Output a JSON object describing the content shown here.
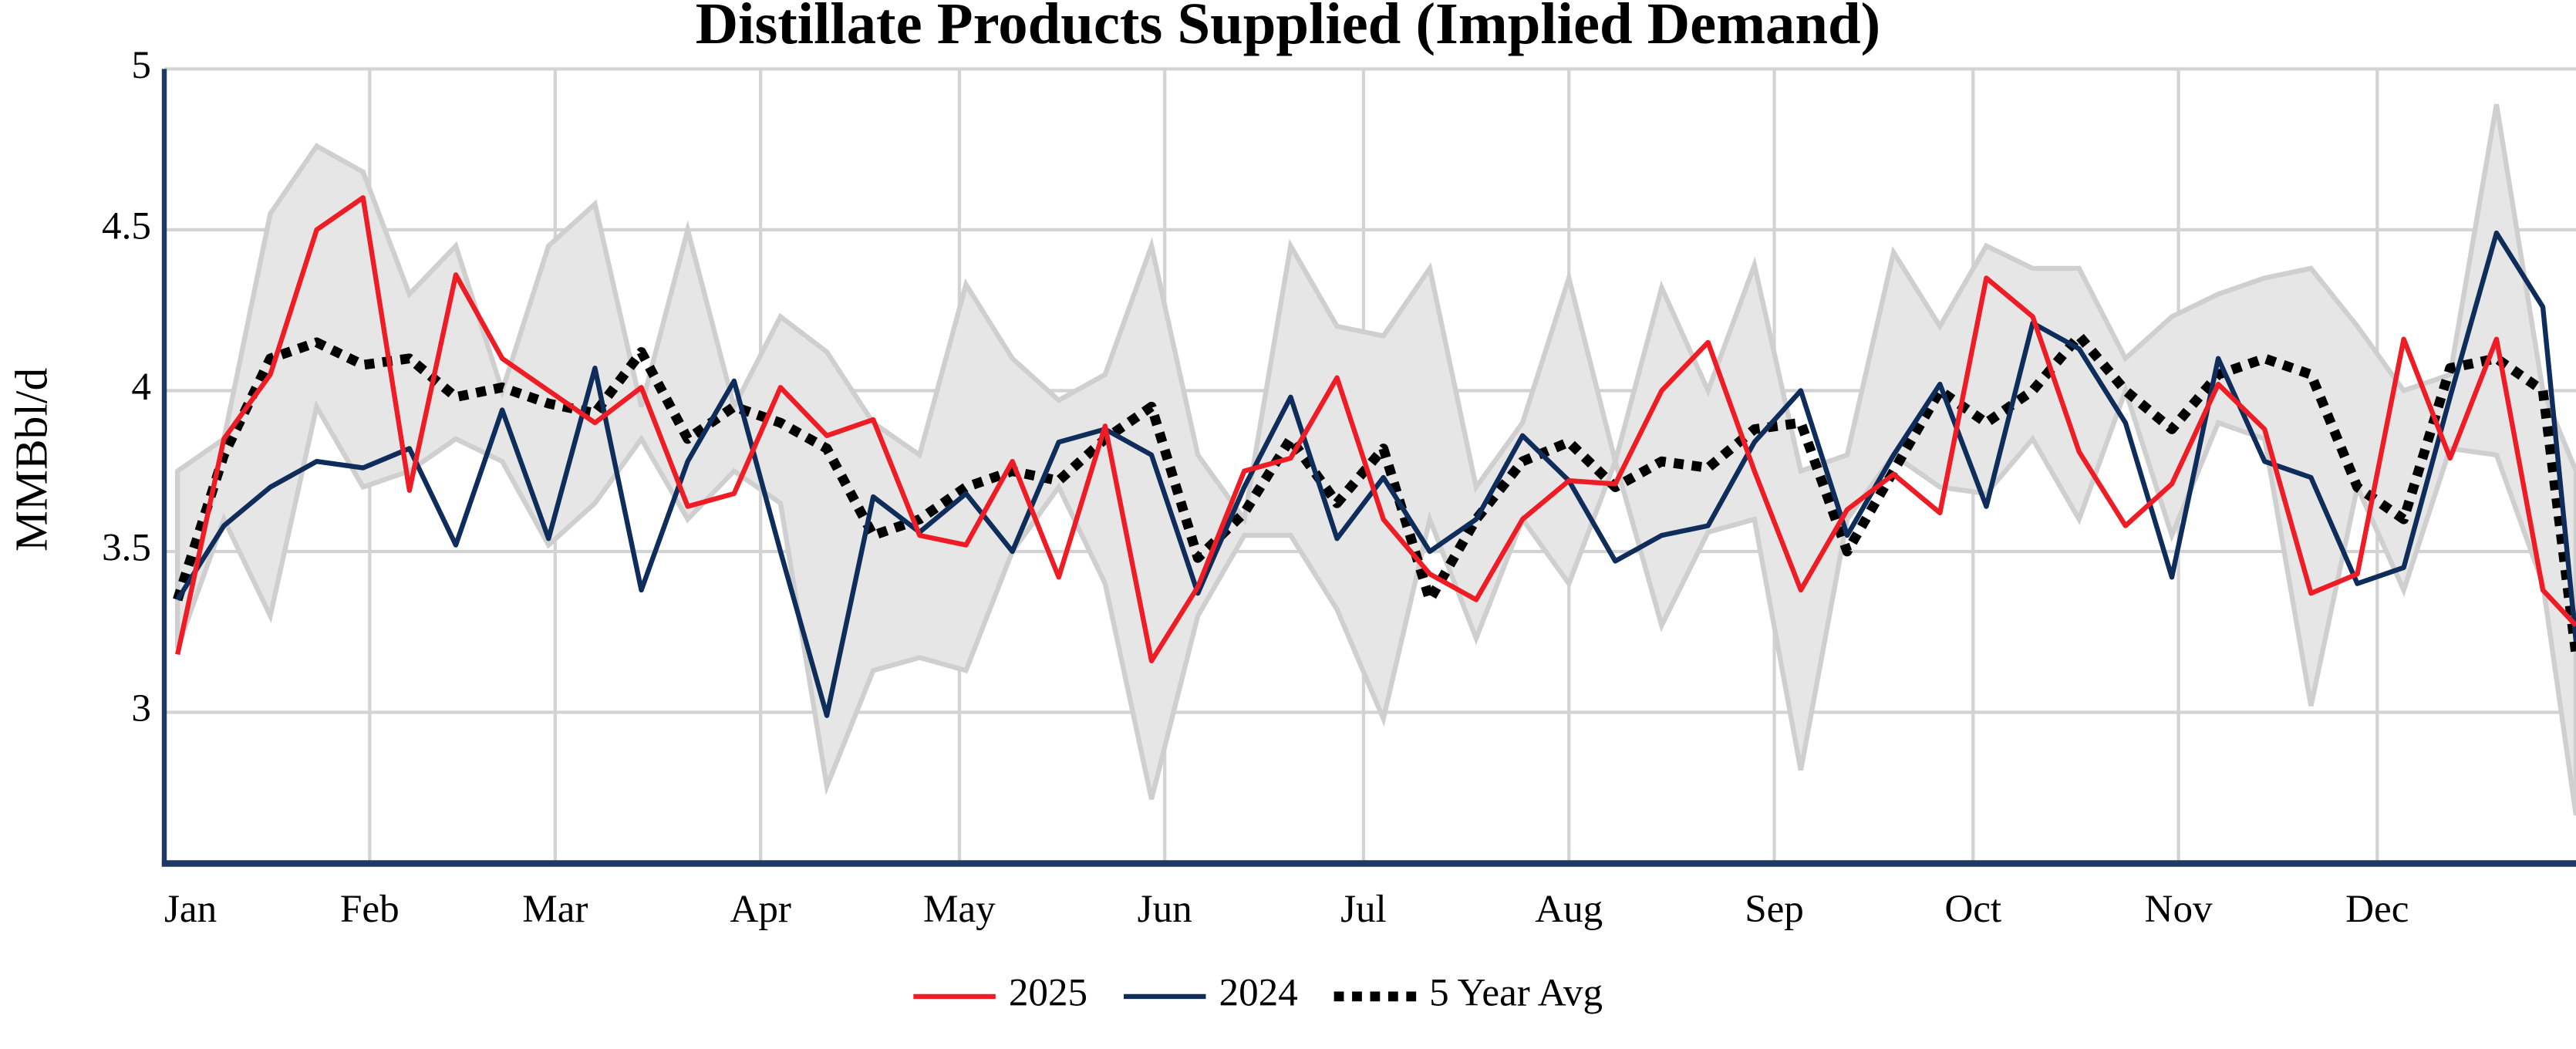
{
  "chart_data": {
    "type": "line",
    "title": "Distillate Products Supplied (Implied Demand)",
    "y_label": "MMBbl/d",
    "x": [
      2,
      9,
      16,
      23,
      30,
      37,
      44,
      51,
      58,
      65,
      72,
      79,
      86,
      93,
      100,
      107,
      114,
      121,
      128,
      135,
      142,
      149,
      156,
      163,
      170,
      177,
      184,
      191,
      198,
      205,
      212,
      219,
      226,
      233,
      240,
      247,
      254,
      261,
      268,
      275,
      282,
      289,
      296,
      303,
      310,
      317,
      324,
      331,
      338,
      345,
      352,
      359,
      364
    ],
    "xlim": [
      0,
      364
    ],
    "xticks": [
      {
        "value": 0,
        "label": "Jan"
      },
      {
        "value": 31,
        "label": "Feb"
      },
      {
        "value": 59,
        "label": "Mar"
      },
      {
        "value": 90,
        "label": "Apr"
      },
      {
        "value": 120,
        "label": "May"
      },
      {
        "value": 151,
        "label": "Jun"
      },
      {
        "value": 181,
        "label": "Jul"
      },
      {
        "value": 212,
        "label": "Aug"
      },
      {
        "value": 243,
        "label": "Sep"
      },
      {
        "value": 273,
        "label": "Oct"
      },
      {
        "value": 304,
        "label": "Nov"
      },
      {
        "value": 334,
        "label": "Dec"
      }
    ],
    "ylim": [
      2.53,
      5
    ],
    "yticks": [
      3,
      3.5,
      4,
      4.5,
      5
    ],
    "grid": true,
    "band": {
      "color": "#e6e6e6",
      "edge_color": "#cfcfcf",
      "upper": [
        3.75,
        3.85,
        4.55,
        4.76,
        4.68,
        4.3,
        4.45,
        4.0,
        4.45,
        4.58,
        3.95,
        4.5,
        3.95,
        4.23,
        4.12,
        3.9,
        3.8,
        4.33,
        4.1,
        3.97,
        4.05,
        4.45,
        3.8,
        3.6,
        4.45,
        4.2,
        4.17,
        4.38,
        3.7,
        3.9,
        4.35,
        3.78,
        4.32,
        4.0,
        4.39,
        3.75,
        3.8,
        4.43,
        4.2,
        4.45,
        4.38,
        4.38,
        4.1,
        4.23,
        4.3,
        4.35,
        4.38,
        4.2,
        4.0,
        4.05,
        4.89,
        4.0,
        3.75
      ],
      "lower": [
        3.2,
        3.6,
        3.3,
        3.95,
        3.7,
        3.75,
        3.85,
        3.78,
        3.52,
        3.65,
        3.85,
        3.6,
        3.75,
        3.65,
        2.77,
        3.13,
        3.17,
        3.13,
        3.5,
        3.7,
        3.4,
        2.73,
        3.3,
        3.55,
        3.55,
        3.32,
        2.98,
        3.6,
        3.23,
        3.6,
        3.4,
        3.78,
        3.27,
        3.56,
        3.6,
        2.82,
        3.6,
        3.8,
        3.7,
        3.68,
        3.85,
        3.6,
        4.0,
        3.55,
        3.9,
        3.85,
        3.02,
        3.7,
        3.38,
        3.82,
        3.8,
        3.4,
        2.68
      ]
    },
    "series": [
      {
        "name": "2025",
        "color": "#ee1c25",
        "style": "solid",
        "values": [
          3.18,
          3.85,
          4.05,
          4.5,
          4.6,
          3.69,
          4.36,
          4.1,
          4.0,
          3.9,
          4.01,
          3.64,
          3.68,
          4.01,
          3.86,
          3.91,
          3.55,
          3.52,
          3.78,
          3.42,
          3.89,
          3.16,
          3.39,
          3.75,
          3.79,
          4.04,
          3.6,
          3.43,
          3.35,
          3.6,
          3.72,
          3.71,
          4.0,
          4.15,
          3.75,
          3.38,
          3.63,
          3.74,
          3.62,
          4.35,
          4.23,
          3.81,
          3.58,
          3.71,
          4.02,
          3.88,
          3.37,
          3.43,
          4.16,
          3.79,
          4.16,
          3.38,
          3.27
        ]
      },
      {
        "name": "2024",
        "color": "#0f2d5a",
        "style": "solid",
        "values": [
          3.35,
          3.58,
          3.7,
          3.78,
          3.76,
          3.82,
          3.52,
          3.94,
          3.54,
          4.07,
          3.38,
          3.78,
          4.03,
          3.5,
          2.99,
          3.67,
          3.56,
          3.68,
          3.5,
          3.84,
          3.88,
          3.8,
          3.37,
          3.7,
          3.98,
          3.54,
          3.73,
          3.5,
          3.6,
          3.86,
          3.72,
          3.47,
          3.55,
          3.58,
          3.84,
          4.0,
          3.55,
          3.8,
          4.02,
          3.64,
          4.21,
          4.13,
          3.9,
          3.42,
          4.1,
          3.78,
          3.73,
          3.4,
          3.45,
          3.98,
          4.49,
          4.26,
          3.22
        ]
      },
      {
        "name": "5 Year Avg",
        "color": "#000000",
        "style": "dotted",
        "values": [
          3.35,
          3.8,
          4.1,
          4.15,
          4.08,
          4.1,
          3.98,
          4.01,
          3.96,
          3.93,
          4.12,
          3.85,
          3.95,
          3.9,
          3.82,
          3.55,
          3.6,
          3.7,
          3.75,
          3.72,
          3.85,
          3.95,
          3.48,
          3.62,
          3.85,
          3.65,
          3.82,
          3.35,
          3.6,
          3.78,
          3.84,
          3.7,
          3.78,
          3.76,
          3.88,
          3.9,
          3.5,
          3.75,
          4.0,
          3.9,
          4.0,
          4.17,
          4.0,
          3.88,
          4.05,
          4.1,
          4.05,
          3.7,
          3.6,
          4.07,
          4.1,
          4.0,
          3.18
        ]
      }
    ],
    "axis_color": "#1f3864"
  }
}
